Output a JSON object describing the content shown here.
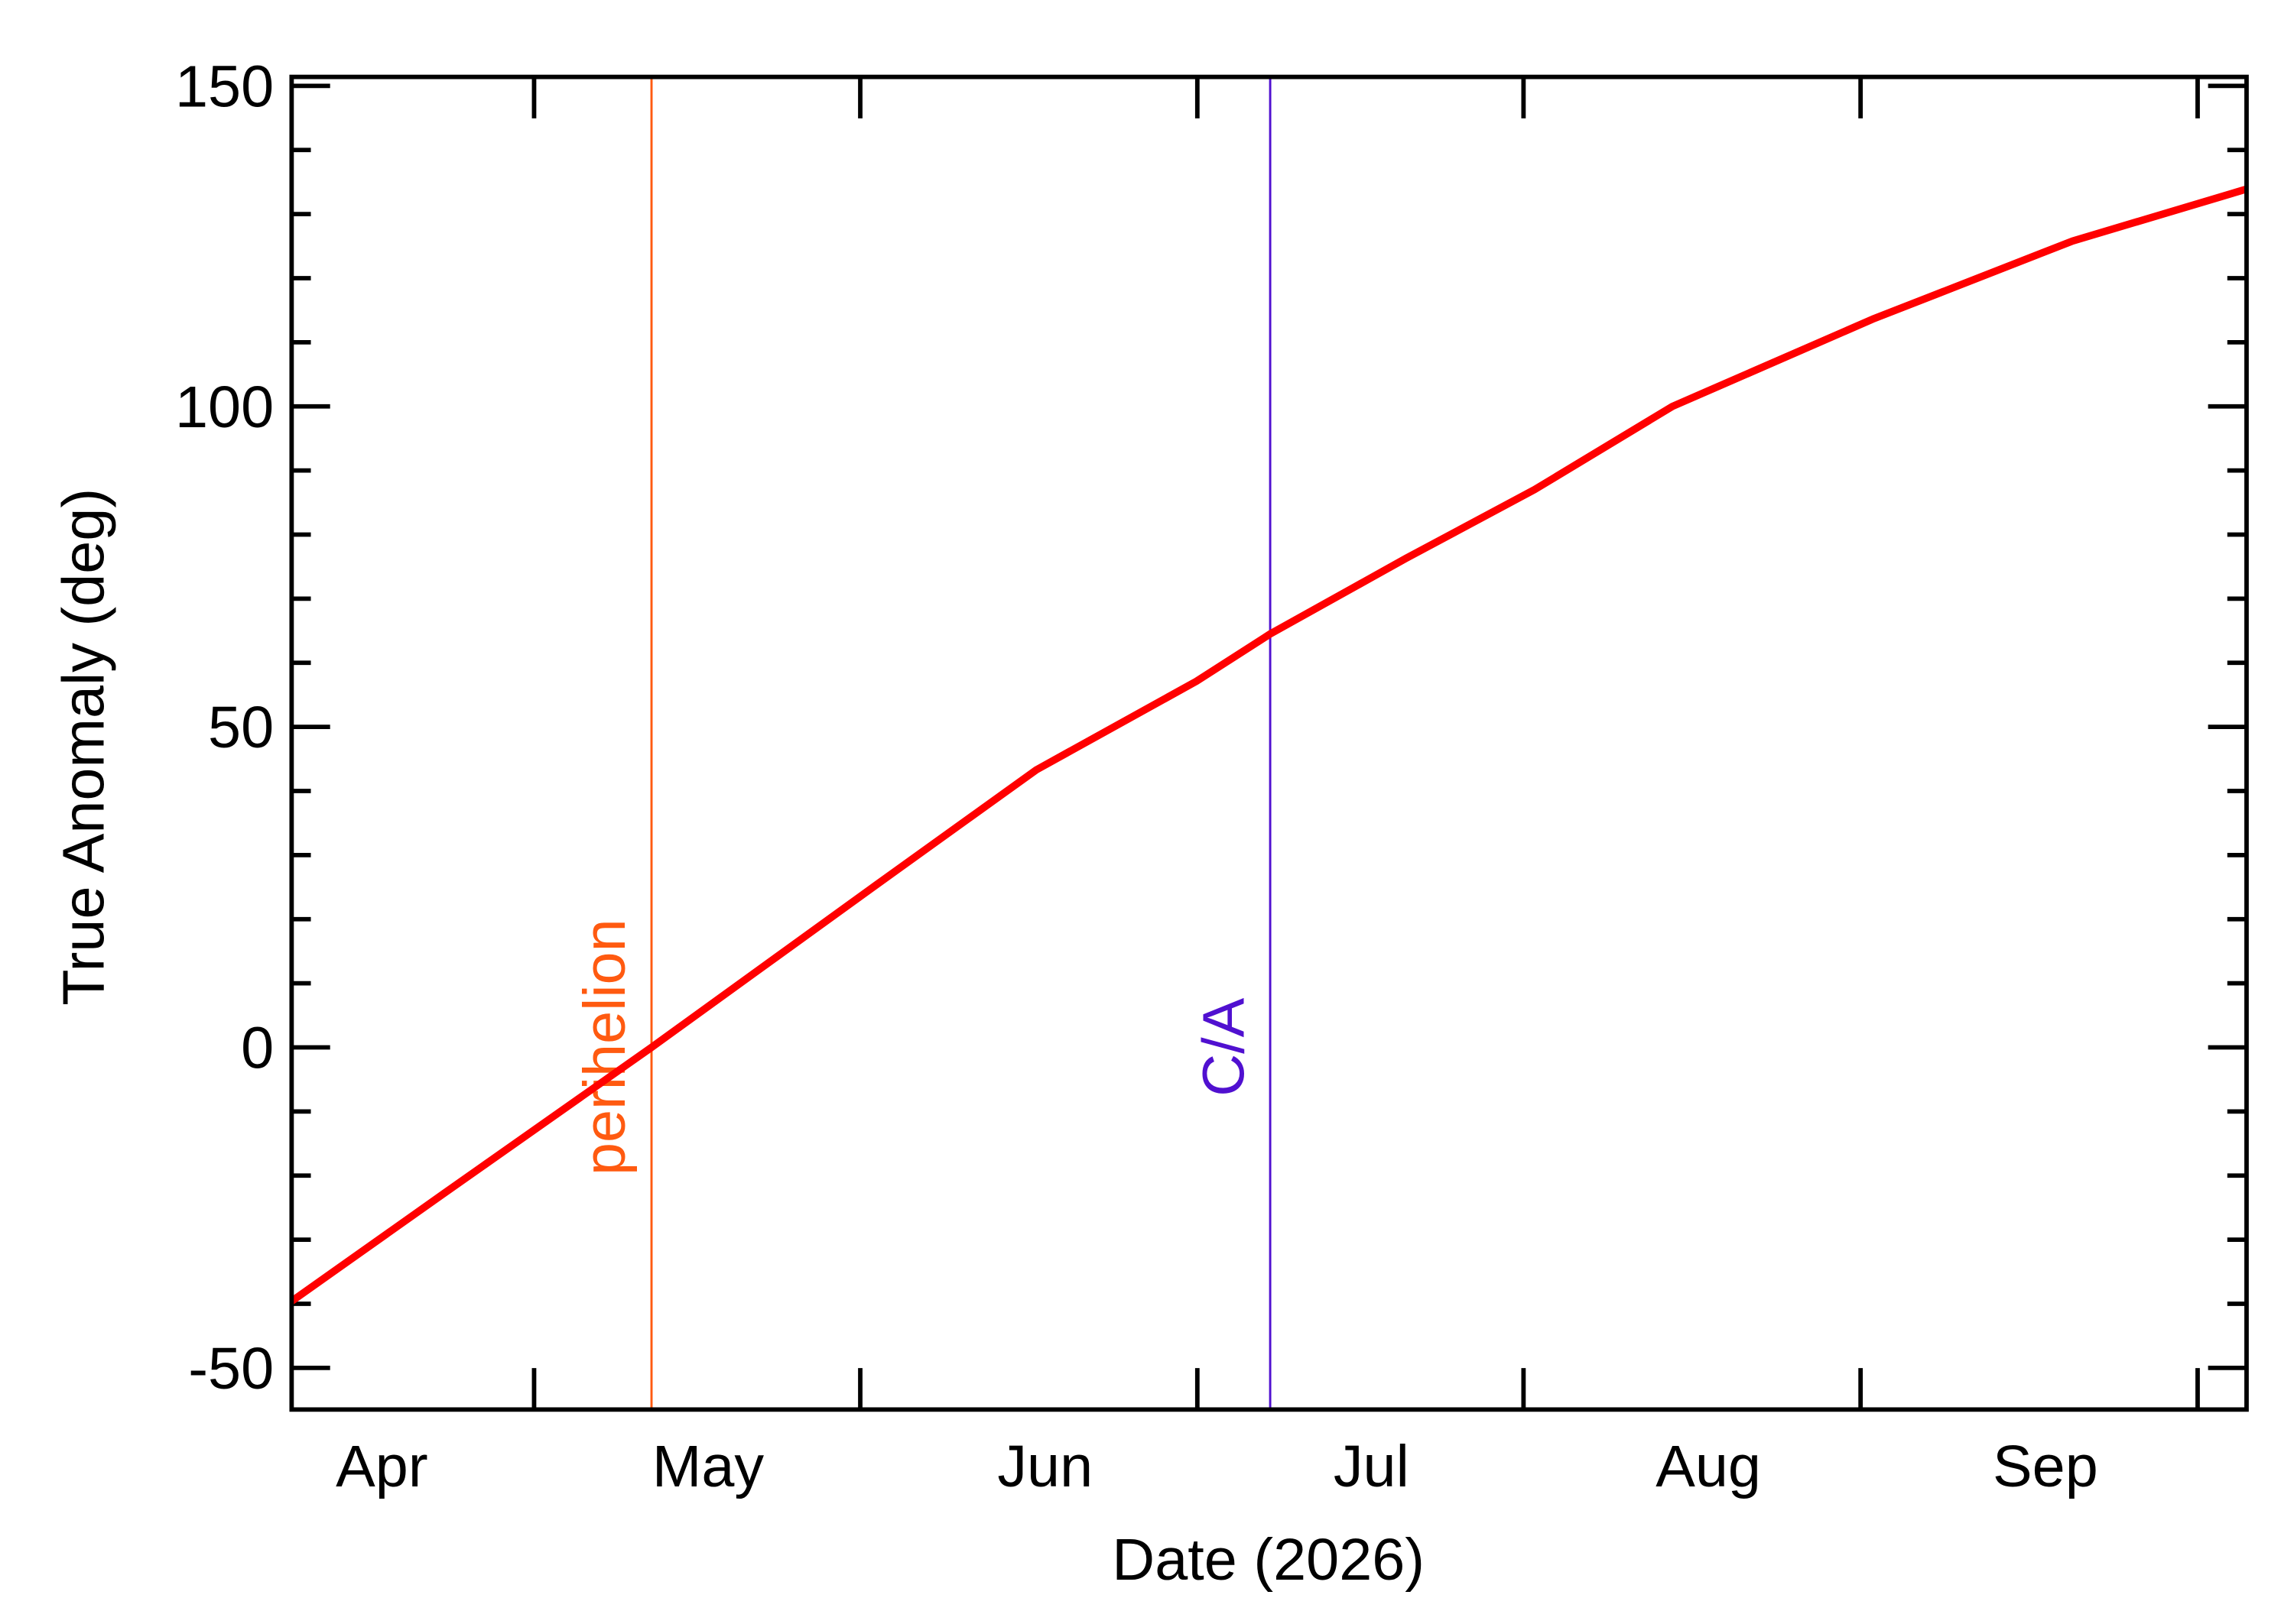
{
  "chart_data": {
    "type": "line",
    "xlabel": "Date (2026)",
    "ylabel": "True Anomaly (deg)",
    "x": [
      82.7,
      96.7,
      115.8,
      136.1,
      151.2,
      165.9,
      172.7,
      185.2,
      197.0,
      209.7,
      228.1,
      246.5,
      262.5
    ],
    "values": [
      -39.6,
      -22.8,
      0,
      24.9,
      43.3,
      57.1,
      64.5,
      76.3,
      87,
      100,
      113.6,
      125.8,
      133.9
    ],
    "color": "#ff0000",
    "xlim": [
      82.7,
      262.5
    ],
    "xticks": [
      {
        "value": 91,
        "label": "Apr"
      },
      {
        "value": 121,
        "label": "May"
      },
      {
        "value": 152,
        "label": "Jun"
      },
      {
        "value": 182,
        "label": "Jul"
      },
      {
        "value": 213,
        "label": "Aug"
      },
      {
        "value": 244,
        "label": "Sep"
      }
    ],
    "xminorticks": [
      105,
      135,
      166,
      196,
      227,
      258
    ],
    "ylim": [
      -56.5,
      151.4
    ],
    "yticks": [
      -50,
      0,
      50,
      100,
      150
    ],
    "yminorticks": [
      -40,
      -30,
      -20,
      -10,
      10,
      20,
      30,
      40,
      60,
      70,
      80,
      90,
      110,
      120,
      130,
      140
    ],
    "vlines": [
      {
        "label": "perihelion",
        "x": 115.8,
        "color": "#ff5a10"
      },
      {
        "label": "C/A",
        "x": 172.7,
        "color": "#5010d0"
      }
    ]
  }
}
